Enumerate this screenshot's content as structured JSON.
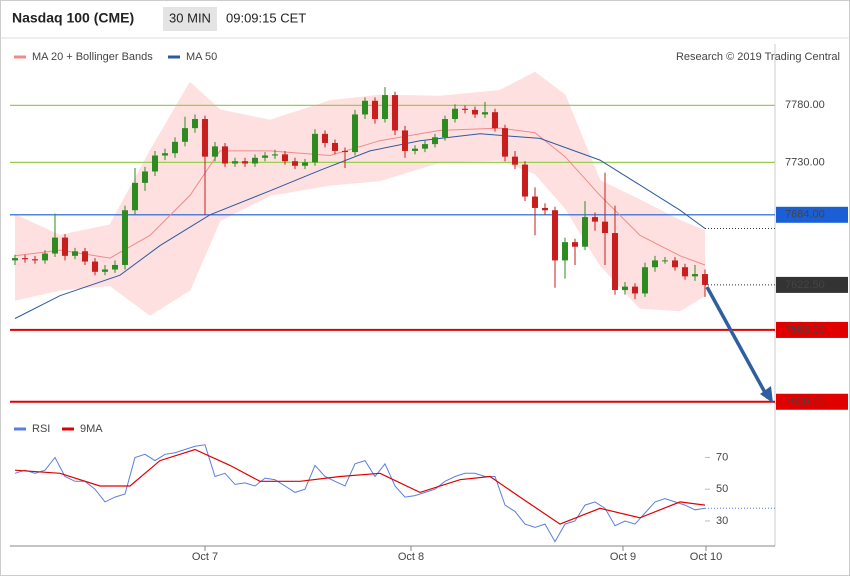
{
  "header": {
    "title": "Nasdaq 100 (CME)",
    "interval": "30 MIN",
    "time": "09:09:15 CET"
  },
  "credit": "Research © 2019 Trading Central",
  "chart_data": [
    {
      "type": "candlestick",
      "xlim": [
        -0.5,
        76
      ],
      "ylim": [
        7504,
        7811
      ],
      "up_color": "#2e8b22",
      "down_color": "#c81e1e",
      "open": [
        7644,
        7646,
        7645,
        7644,
        7650,
        7664,
        7648,
        7652,
        7643,
        7634,
        7636,
        7640,
        7688,
        7712,
        7722,
        7736,
        7738,
        7748,
        7760,
        7768,
        7735,
        7744,
        7729,
        7731,
        7729,
        7734,
        7736,
        7737,
        7731,
        7727,
        7730,
        7755,
        7747,
        7740,
        7739,
        7772,
        7784,
        7768,
        7789,
        7758,
        7740,
        7742,
        7746,
        7752,
        7768,
        7777,
        7776,
        7772,
        7774,
        7760,
        7735,
        7728,
        7700,
        7690,
        7688,
        7644,
        7660,
        7656,
        7682,
        7678,
        7668,
        7618,
        7621,
        7615,
        7638,
        7644,
        7644,
        7638,
        7630,
        7632
      ],
      "high": [
        7649,
        7649,
        7648,
        7653,
        7685,
        7667,
        7655,
        7655,
        7646,
        7640,
        7644,
        7692,
        7725,
        7726,
        7740,
        7742,
        7752,
        7770,
        7772,
        7771,
        7748,
        7747,
        7734,
        7734,
        7737,
        7739,
        7741,
        7740,
        7734,
        7733,
        7759,
        7758,
        7750,
        7743,
        7776,
        7787,
        7787,
        7796,
        7792,
        7762,
        7745,
        7749,
        7755,
        7771,
        7781,
        7780,
        7779,
        7783,
        7777,
        7763,
        7740,
        7731,
        7708,
        7694,
        7691,
        7664,
        7663,
        7696,
        7686,
        7721,
        7692,
        7625,
        7624,
        7642,
        7648,
        7647,
        7647,
        7641,
        7640,
        7636
      ],
      "low": [
        7640,
        7642,
        7641,
        7641,
        7647,
        7644,
        7645,
        7640,
        7631,
        7631,
        7633,
        7636,
        7684,
        7705,
        7718,
        7732,
        7734,
        7744,
        7756,
        7684,
        7731,
        7726,
        7726,
        7726,
        7726,
        7731,
        7733,
        7728,
        7724,
        7724,
        7727,
        7743,
        7737,
        7725,
        7736,
        7768,
        7764,
        7765,
        7754,
        7734,
        7737,
        7739,
        7743,
        7749,
        7765,
        7773,
        7769,
        7769,
        7757,
        7731,
        7724,
        7696,
        7666,
        7684,
        7620,
        7628,
        7640,
        7653,
        7670,
        7640,
        7614,
        7614,
        7610,
        7612,
        7634,
        7641,
        7635,
        7627,
        7626,
        7612
      ],
      "close": [
        7646,
        7645,
        7644,
        7650,
        7664,
        7648,
        7652,
        7643,
        7634,
        7636,
        7640,
        7688,
        7712,
        7722,
        7736,
        7738,
        7748,
        7760,
        7768,
        7735,
        7744,
        7729,
        7731,
        7729,
        7734,
        7736,
        7737,
        7731,
        7727,
        7730,
        7755,
        7747,
        7740,
        7739,
        7772,
        7784,
        7768,
        7789,
        7758,
        7740,
        7742,
        7746,
        7752,
        7768,
        7777,
        7776,
        7772,
        7774,
        7760,
        7735,
        7728,
        7700,
        7690,
        7688,
        7644,
        7660,
        7656,
        7682,
        7678,
        7668,
        7618,
        7621,
        7615,
        7638,
        7644,
        7644,
        7638,
        7630,
        7632,
        7622.5
      ],
      "series": [
        {
          "name": "MA 20 + Bollinger Bands",
          "color": "#f08a8a",
          "band_color": "#ffe0e0",
          "x": [
            0,
            4.5,
            9.5,
            13.5,
            17.5,
            20.5,
            25.5,
            31.5,
            36.5,
            42.5,
            48.5,
            52,
            55,
            58.5,
            62.5,
            66.5,
            69
          ],
          "values": [
            7648,
            7653,
            7646,
            7666,
            7701,
            7740,
            7740,
            7736,
            7749,
            7758,
            7760,
            7756,
            7735,
            7701,
            7666,
            7648,
            7640
          ],
          "upper": [
            7684,
            7666,
            7675,
            7740,
            7800,
            7776,
            7767,
            7784,
            7789,
            7788,
            7793,
            7809,
            7789,
            7714,
            7697,
            7679,
            7670
          ],
          "lower": [
            7609,
            7618,
            7622,
            7596,
            7618,
            7679,
            7701,
            7710,
            7714,
            7730,
            7732,
            7720,
            7690,
            7640,
            7602,
            7600,
            7613
          ]
        },
        {
          "name": "MA 50",
          "color": "#2c5aa0",
          "x": [
            0,
            4.5,
            10.5,
            14.5,
            19.5,
            25.5,
            30.5,
            35.5,
            40.5,
            46.5,
            52.5,
            58.5,
            62.5,
            66.5,
            69
          ],
          "values": [
            7593,
            7613,
            7631,
            7657,
            7684,
            7705,
            7723,
            7740,
            7749,
            7755,
            7751,
            7732,
            7710,
            7688,
            7672
          ]
        }
      ],
      "levels": [
        {
          "value": 7780,
          "label": "7780.00",
          "color": "#9acd50",
          "boxed": false
        },
        {
          "value": 7730,
          "label": "7730.00",
          "color": "#9acd50",
          "boxed": false
        },
        {
          "value": 7684,
          "label": "7684.00",
          "color": "#1a5fd6",
          "boxed": true
        },
        {
          "value": 7583,
          "label": "7583.00",
          "color": "#e00000",
          "boxed": true
        },
        {
          "value": 7520,
          "label": "7520.00",
          "color": "#e00000",
          "boxed": true
        }
      ],
      "last": {
        "value": 7622.5,
        "label": "7622.50",
        "color": "#333333"
      }
    },
    {
      "type": "line",
      "xlim": [
        -0.5,
        76
      ],
      "ylim": [
        18,
        81
      ],
      "yticks": [
        30,
        50,
        70
      ],
      "xticks": [
        {
          "value": 19,
          "label": "Oct 7"
        },
        {
          "value": 39.6,
          "label": "Oct 8"
        },
        {
          "value": 60.8,
          "label": "Oct 9"
        },
        {
          "value": 69.1,
          "label": "Oct 10"
        }
      ],
      "series": [
        {
          "name": "RSI",
          "color": "#5b7fe0",
          "x": [
            0,
            1,
            2,
            3,
            4,
            5,
            6,
            7,
            8,
            9,
            10,
            11,
            12,
            13,
            14,
            15,
            16,
            17,
            18,
            19,
            20,
            21,
            22,
            23,
            24,
            25,
            26,
            27,
            28,
            29,
            30,
            31,
            32,
            33,
            34,
            35,
            36,
            37,
            38,
            39,
            40,
            41,
            42,
            43,
            44,
            45,
            46,
            47,
            48,
            49,
            50,
            51,
            52,
            53,
            54,
            55,
            56,
            57,
            58,
            59,
            60,
            61,
            62,
            63,
            64,
            65,
            66,
            67,
            68,
            69
          ],
          "values": [
            60,
            62,
            60,
            62,
            70,
            58,
            55,
            55,
            50,
            42,
            45,
            47,
            70,
            72,
            68,
            72,
            73,
            75,
            77,
            78,
            58,
            60,
            53,
            54,
            52,
            57,
            56,
            52,
            48,
            50,
            65,
            58,
            55,
            52,
            66,
            68,
            58,
            66,
            52,
            45,
            46,
            48,
            50,
            55,
            58,
            60,
            60,
            58,
            58,
            40,
            36,
            28,
            26,
            28,
            17,
            28,
            30,
            40,
            42,
            38,
            27,
            30,
            28,
            35,
            42,
            44,
            42,
            40,
            37,
            38
          ]
        },
        {
          "name": "9MA",
          "color": "#e00000",
          "x": [
            0,
            4.5,
            8.5,
            11.5,
            14.5,
            18,
            21.5,
            24.5,
            28.5,
            32.5,
            36.5,
            40.5,
            44.5,
            47.5,
            50.5,
            54.5,
            58.5,
            62.5,
            66.5,
            69
          ],
          "values": [
            62,
            60,
            52,
            52,
            68,
            75,
            65,
            55,
            55,
            58,
            60,
            48,
            56,
            58,
            45,
            28,
            38,
            32,
            42,
            40
          ]
        }
      ]
    }
  ]
}
